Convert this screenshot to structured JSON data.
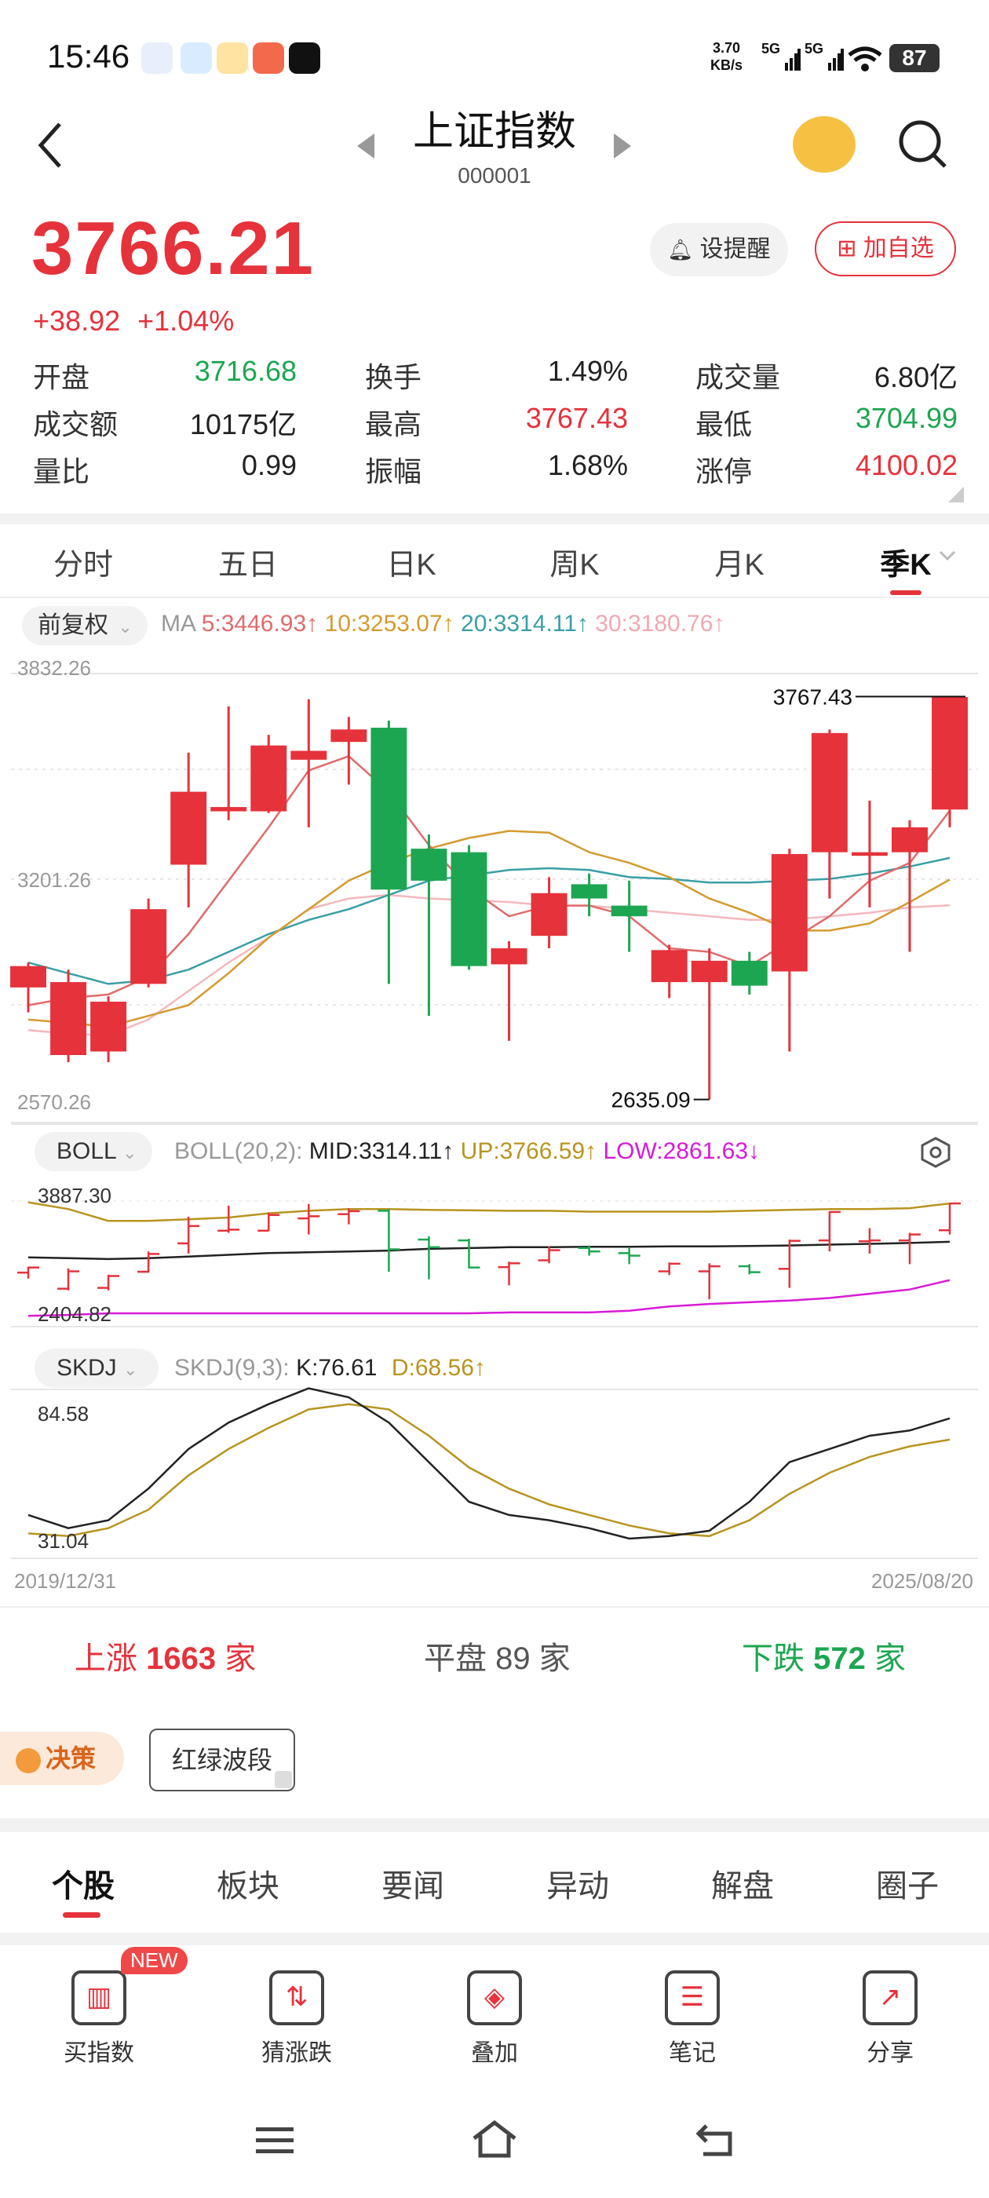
{
  "status_bar": {
    "time": "15:46",
    "net_speed_value": "3.70",
    "net_speed_unit": "KB/s",
    "signal1": "5G",
    "signal2": "5G",
    "battery": "87"
  },
  "header": {
    "title": "上证指数",
    "code": "000001"
  },
  "quote": {
    "price": "3766.21",
    "change": "+38.92",
    "change_pct": "+1.04%",
    "alert_label": "设提醒",
    "add_watch_label": "加自选"
  },
  "stats": [
    {
      "label": "开盘",
      "value": "3716.68",
      "color": "green"
    },
    {
      "label": "换手",
      "value": "1.49%",
      "color": "black"
    },
    {
      "label": "成交量",
      "value": "6.80亿",
      "color": "black"
    },
    {
      "label": "成交额",
      "value": "10175亿",
      "color": "black"
    },
    {
      "label": "最高",
      "value": "3767.43",
      "color": "red"
    },
    {
      "label": "最低",
      "value": "3704.99",
      "color": "green"
    },
    {
      "label": "量比",
      "value": "0.99",
      "color": "black"
    },
    {
      "label": "振幅",
      "value": "1.68%",
      "color": "black"
    },
    {
      "label": "涨停",
      "value": "4100.02",
      "color": "red"
    }
  ],
  "period_tabs": [
    "分时",
    "五日",
    "日K",
    "周K",
    "月K",
    "季K"
  ],
  "active_period": "季K",
  "ma_bar": {
    "adjust_label": "前复权",
    "ma_label": "MA",
    "ma5": "5:3446.93↑",
    "ma10": "10:3253.07↑",
    "ma20": "20:3314.11↑",
    "ma30": "30:3180.76↑"
  },
  "main_axis": {
    "top": "3832.26",
    "mid": "3201.26",
    "bottom": "2570.26",
    "high_label": "3767.43",
    "low_label": "2635.09"
  },
  "boll_bar": {
    "label": "BOLL",
    "params": "BOLL(20,2):",
    "mid": "MID:3314.11↑",
    "up": "UP:3766.59↑",
    "low": "LOW:2861.63↓",
    "axis_top": "3887.30",
    "axis_bottom": "2404.82"
  },
  "skdj_bar": {
    "label": "SKDJ",
    "params": "SKDJ(9,3):",
    "k": "K:76.61",
    "d": "D:68.56↑",
    "axis_top": "84.58",
    "axis_bottom": "31.04"
  },
  "date_range": {
    "start": "2019/12/31",
    "end": "2025/08/20"
  },
  "breadth": {
    "up_label": "上涨",
    "up_count": "1663",
    "up_unit": "家",
    "flat_label": "平盘",
    "flat_count": "89",
    "flat_unit": "家",
    "down_label": "下跌",
    "down_count": "572",
    "down_unit": "家"
  },
  "strategy": {
    "decision_label": "决策",
    "wave_label": "红绿波段"
  },
  "content_tabs": [
    "个股",
    "板块",
    "要闻",
    "异动",
    "解盘",
    "圈子"
  ],
  "active_content_tab": "个股",
  "toolbar": [
    {
      "label": "买指数",
      "icon": "chart-bar-icon",
      "badge": "NEW"
    },
    {
      "label": "猜涨跌",
      "icon": "updown-icon"
    },
    {
      "label": "叠加",
      "icon": "layers-icon"
    },
    {
      "label": "笔记",
      "icon": "notes-icon"
    },
    {
      "label": "分享",
      "icon": "share-icon"
    }
  ],
  "chart_data": {
    "type": "candlestick",
    "period": "quarterly",
    "ylim": [
      2570.26,
      3832.26
    ],
    "candles": [
      {
        "open": 2950,
        "close": 3010,
        "high": 3020,
        "low": 2880
      },
      {
        "open": 2760,
        "close": 2965,
        "high": 3000,
        "low": 2740
      },
      {
        "open": 2770,
        "close": 2910,
        "high": 2925,
        "low": 2740
      },
      {
        "open": 2960,
        "close": 3170,
        "high": 3200,
        "low": 2950
      },
      {
        "open": 3295,
        "close": 3500,
        "high": 3610,
        "low": 3175
      },
      {
        "open": 3445,
        "close": 3457,
        "high": 3740,
        "low": 3420
      },
      {
        "open": 3445,
        "close": 3630,
        "high": 3660,
        "low": 3440
      },
      {
        "open": 3590,
        "close": 3615,
        "high": 3760,
        "low": 3400
      },
      {
        "open": 3640,
        "close": 3675,
        "high": 3710,
        "low": 3520
      },
      {
        "open": 3680,
        "close": 3225,
        "high": 3700,
        "low": 2960
      },
      {
        "open": 3340,
        "close": 3250,
        "high": 3380,
        "low": 2870
      },
      {
        "open": 3330,
        "close": 3010,
        "high": 3350,
        "low": 3000
      },
      {
        "open": 3015,
        "close": 3060,
        "high": 3080,
        "low": 2800
      },
      {
        "open": 3095,
        "close": 3215,
        "high": 3260,
        "low": 3060
      },
      {
        "open": 3240,
        "close": 3200,
        "high": 3270,
        "low": 3150
      },
      {
        "open": 3180,
        "close": 3150,
        "high": 3250,
        "low": 3050
      },
      {
        "open": 2965,
        "close": 3055,
        "high": 3070,
        "low": 2920
      },
      {
        "open": 2965,
        "close": 3025,
        "high": 3060,
        "low": 2635.09
      },
      {
        "open": 3025,
        "close": 2955,
        "high": 3050,
        "low": 2930
      },
      {
        "open": 2995,
        "close": 3325,
        "high": 3340,
        "low": 2770
      },
      {
        "open": 3330,
        "close": 3665,
        "high": 3675,
        "low": 3200
      },
      {
        "open": 3320,
        "close": 3330,
        "high": 3475,
        "low": 3175
      },
      {
        "open": 3330,
        "close": 3400,
        "high": 3420,
        "low": 3050
      },
      {
        "open": 3450,
        "close": 3766.21,
        "high": 3767.43,
        "low": 3400
      }
    ],
    "ma5": [
      2900,
      2920,
      2930,
      2980,
      3100,
      3250,
      3400,
      3560,
      3600,
      3500,
      3350,
      3230,
      3150,
      3180,
      3180,
      3150,
      3060,
      3050,
      3010,
      3080,
      3150,
      3250,
      3300,
      3446.93
    ],
    "ma10": [
      2860,
      2850,
      2840,
      2870,
      2900,
      2990,
      3090,
      3170,
      3250,
      3300,
      3340,
      3370,
      3390,
      3385,
      3330,
      3300,
      3260,
      3200,
      3160,
      3110,
      3110,
      3130,
      3190,
      3253.07
    ],
    "ma20": [
      3020,
      2990,
      2960,
      2970,
      3000,
      3050,
      3100,
      3140,
      3170,
      3210,
      3250,
      3265,
      3280,
      3285,
      3280,
      3260,
      3255,
      3245,
      3245,
      3250,
      3255,
      3270,
      3290,
      3314.11
    ],
    "ma30": [
      2830,
      2820,
      2815,
      2860,
      2940,
      3020,
      3090,
      3170,
      3200,
      3210,
      3200,
      3195,
      3190,
      3180,
      3180,
      3170,
      3160,
      3150,
      3140,
      3140,
      3150,
      3160,
      3175,
      3180.76
    ],
    "boll_mid": [
      3130,
      3120,
      3110,
      3120,
      3140,
      3160,
      3180,
      3190,
      3200,
      3210,
      3230,
      3240,
      3250,
      3250,
      3255,
      3255,
      3260,
      3260,
      3265,
      3270,
      3280,
      3290,
      3300,
      3314.11
    ],
    "boll_up": [
      3780,
      3700,
      3560,
      3560,
      3580,
      3600,
      3650,
      3680,
      3700,
      3700,
      3690,
      3685,
      3680,
      3680,
      3670,
      3670,
      3670,
      3670,
      3680,
      3690,
      3700,
      3700,
      3710,
      3766.59
    ],
    "boll_low": [
      2440,
      2450,
      2470,
      2470,
      2470,
      2470,
      2470,
      2470,
      2470,
      2470,
      2470,
      2470,
      2480,
      2480,
      2480,
      2500,
      2550,
      2580,
      2600,
      2620,
      2650,
      2700,
      2750,
      2861.63
    ],
    "skdj_k": [
      40,
      35,
      38,
      50,
      65,
      75,
      82,
      88,
      84.58,
      75,
      60,
      45,
      40,
      38,
      35,
      31.04,
      32,
      34,
      45,
      60,
      65,
      70,
      72,
      76.61
    ],
    "skdj_d": [
      33,
      32,
      35,
      42,
      55,
      65,
      73,
      80,
      82,
      80,
      70,
      58,
      50,
      44,
      40,
      36,
      33,
      32,
      38,
      48,
      56,
      62,
      66,
      68.56
    ]
  }
}
